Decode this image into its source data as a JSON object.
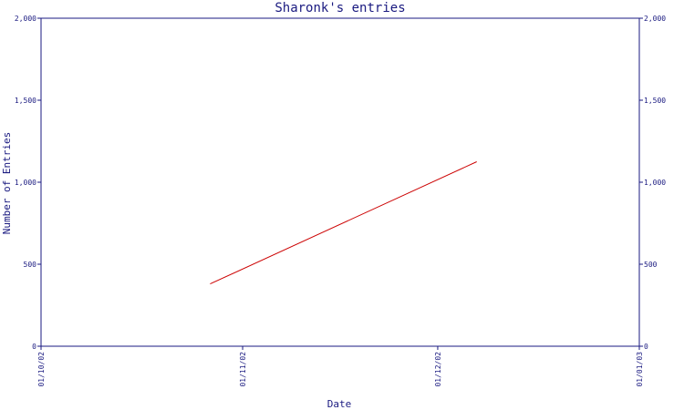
{
  "chart_data": {
    "type": "line",
    "title": "Sharonk's entries",
    "xlabel": "Date",
    "ylabel": "Number of Entries",
    "x_ticks": [
      "01/10/02",
      "01/11/02",
      "01/12/02",
      "01/01/03"
    ],
    "y_ticks": [
      "0",
      "500",
      "1,000",
      "1,500",
      "2,000"
    ],
    "ylim": [
      0,
      2000
    ],
    "xlim": [
      "2002-10-01",
      "2003-01-01"
    ],
    "y_axis_right": true,
    "grid": false,
    "colors": {
      "axis": "#1a1a80",
      "line": "#cc0000"
    },
    "series": [
      {
        "x": [
          "2002-10-27",
          "2002-12-07"
        ],
        "y": [
          380,
          1125
        ]
      }
    ]
  }
}
